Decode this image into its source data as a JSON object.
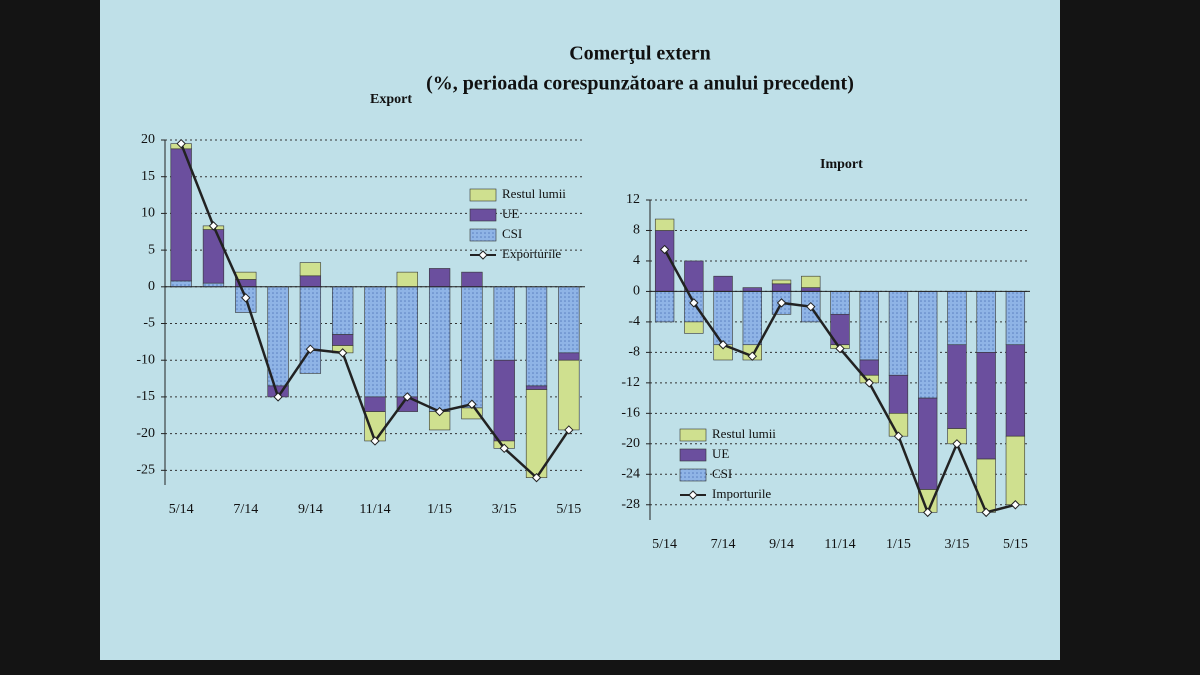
{
  "slide": {
    "title": "Comerţul extern",
    "subtitle": "(%, perioada corespunzătoare a anului precedent)"
  },
  "chart_data": [
    {
      "type": "bar",
      "stacked": true,
      "title": "Export",
      "legend": "upper right",
      "grid": true,
      "categories": [
        "5/14",
        null,
        "7/14",
        null,
        "9/14",
        null,
        "11/14",
        null,
        "1/15",
        null,
        "3/15",
        null,
        "5/15"
      ],
      "ylim": [
        -27,
        20
      ],
      "yticks": [
        20,
        15,
        10,
        5,
        0,
        -5,
        -10,
        -15,
        -20,
        -25
      ],
      "series": [
        {
          "name": "CSI",
          "type": "bar",
          "color": "#8fb4e6",
          "values": [
            0.8,
            0.5,
            -3.5,
            -13.5,
            -11.8,
            -6.5,
            -15,
            -15,
            -17,
            -16.5,
            -10,
            -13.5,
            -9
          ]
        },
        {
          "name": "UE",
          "type": "bar",
          "color": "#6b4f9e",
          "values": [
            18,
            7.3,
            1,
            -1.5,
            1.5,
            -1.5,
            -2,
            -2,
            2.5,
            2,
            -11,
            -0.5,
            -1
          ]
        },
        {
          "name": "Restul lumii",
          "type": "bar",
          "color": "#cfe08f",
          "values": [
            0.7,
            0.5,
            1,
            0,
            1.8,
            -1,
            -4,
            2,
            -2.5,
            -1.5,
            -1,
            -12,
            -9.5
          ]
        },
        {
          "name": "Exporturile",
          "type": "line",
          "color": "#222222",
          "values": [
            19.5,
            8.3,
            -1.5,
            -15,
            -8.5,
            -9,
            -21,
            -15,
            -17,
            -16,
            -22,
            -26,
            -19.5
          ]
        }
      ]
    },
    {
      "type": "bar",
      "stacked": true,
      "title": "Import",
      "legend": "lower left",
      "grid": true,
      "categories": [
        "5/14",
        null,
        "7/14",
        null,
        "9/14",
        null,
        "11/14",
        null,
        "1/15",
        null,
        "3/15",
        null,
        "5/15"
      ],
      "ylim": [
        -30,
        12
      ],
      "yticks": [
        12,
        8,
        4,
        0,
        -4,
        -8,
        -12,
        -16,
        -20,
        -24,
        -28
      ],
      "series": [
        {
          "name": "CSI",
          "type": "bar",
          "color": "#8fb4e6",
          "values": [
            -4,
            -4,
            -7,
            -7,
            -3,
            -4,
            -3,
            -9,
            -11,
            -14,
            -7,
            -8,
            -7
          ]
        },
        {
          "name": "UE",
          "type": "bar",
          "color": "#6b4f9e",
          "values": [
            8,
            4,
            2,
            0.5,
            1,
            0.5,
            -4,
            -2,
            -5,
            -12,
            -11,
            -14,
            -12
          ]
        },
        {
          "name": "Restul lumii",
          "type": "bar",
          "color": "#cfe08f",
          "values": [
            1.5,
            -1.5,
            -2,
            -2,
            0.5,
            1.5,
            -0.5,
            -1,
            -3,
            -3,
            -2,
            -7,
            -9
          ]
        },
        {
          "name": "Importurile",
          "type": "line",
          "color": "#222222",
          "values": [
            5.5,
            -1.5,
            -7,
            -8.5,
            -1.5,
            -2,
            -7.5,
            -12,
            -19,
            -29,
            -20,
            -29,
            -28
          ]
        }
      ]
    }
  ]
}
